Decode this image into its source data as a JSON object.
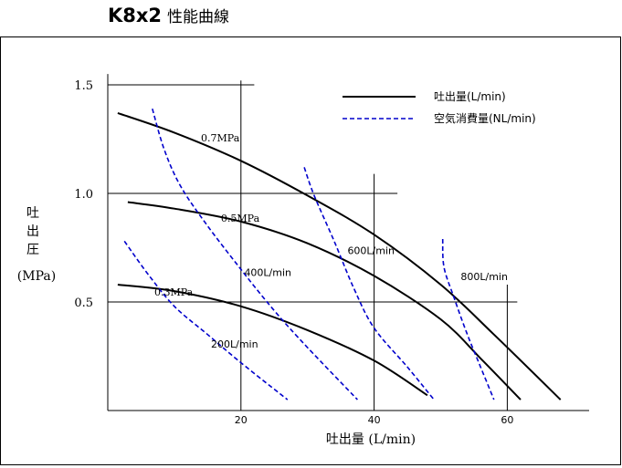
{
  "title": {
    "model": "K8x2",
    "subtitle": "性能曲線"
  },
  "chart_data": {
    "type": "line",
    "title": "K8x2 性能曲線",
    "xlabel": "吐出量 (L/min)",
    "ylabel_chars": [
      "吐",
      "出",
      "圧"
    ],
    "ylabel_unit": "(MPa)",
    "xlim": [
      0,
      72
    ],
    "ylim": [
      0,
      1.5
    ],
    "xticks": [
      20,
      40,
      60
    ],
    "yticks": [
      0.5,
      1.0,
      1.5
    ],
    "ytick_labels": [
      "0.5",
      "1.0",
      "1.5"
    ],
    "grid": "partial",
    "legend": {
      "placement": "top-right",
      "entries": [
        {
          "label": "吐出量(L/min)",
          "style": "solid",
          "color": "#000000"
        },
        {
          "label": "空気消費量(NL/min)",
          "style": "dashed",
          "color": "#0000cc"
        }
      ]
    },
    "pressure_curves": [
      {
        "label": "0.7MPa",
        "label_at": [
          14,
          1.24
        ],
        "points": [
          [
            1.5,
            1.37
          ],
          [
            10,
            1.28
          ],
          [
            20,
            1.15
          ],
          [
            30,
            0.99
          ],
          [
            40,
            0.81
          ],
          [
            50,
            0.58
          ],
          [
            58,
            0.35
          ],
          [
            68,
            0.05
          ]
        ]
      },
      {
        "label": "0.5MPa",
        "label_at": [
          17,
          0.87
        ],
        "points": [
          [
            3,
            0.96
          ],
          [
            10,
            0.93
          ],
          [
            20,
            0.87
          ],
          [
            30,
            0.77
          ],
          [
            40,
            0.62
          ],
          [
            50,
            0.42
          ],
          [
            56,
            0.24
          ],
          [
            62,
            0.05
          ]
        ]
      },
      {
        "label": "0.3MPa",
        "label_at": [
          7,
          0.53
        ],
        "points": [
          [
            1.5,
            0.58
          ],
          [
            10,
            0.55
          ],
          [
            20,
            0.48
          ],
          [
            30,
            0.37
          ],
          [
            40,
            0.23
          ],
          [
            48,
            0.07
          ]
        ]
      }
    ],
    "air_curves": [
      {
        "label": "200L/min",
        "label_at": [
          15.5,
          0.29
        ],
        "points": [
          [
            2.5,
            0.78
          ],
          [
            6,
            0.63
          ],
          [
            10,
            0.48
          ],
          [
            15,
            0.35
          ],
          [
            20,
            0.22
          ],
          [
            27,
            0.05
          ]
        ]
      },
      {
        "label": "400L/min",
        "label_at": [
          20.5,
          0.62
        ],
        "points": [
          [
            6.7,
            1.39
          ],
          [
            8.5,
            1.2
          ],
          [
            11,
            1.03
          ],
          [
            15,
            0.85
          ],
          [
            20,
            0.65
          ],
          [
            25,
            0.46
          ],
          [
            30,
            0.29
          ],
          [
            37.5,
            0.05
          ]
        ]
      },
      {
        "label": "600L/min",
        "label_at": [
          36,
          0.72
        ],
        "points": [
          [
            29.5,
            1.12
          ],
          [
            31,
            0.99
          ],
          [
            34,
            0.78
          ],
          [
            37,
            0.56
          ],
          [
            40,
            0.38
          ],
          [
            45,
            0.2
          ],
          [
            49,
            0.05
          ]
        ]
      },
      {
        "label": "800L/min",
        "label_at": [
          53,
          0.6
        ],
        "points": [
          [
            50.3,
            0.79
          ],
          [
            50.5,
            0.66
          ],
          [
            52,
            0.52
          ],
          [
            54,
            0.35
          ],
          [
            56,
            0.2
          ],
          [
            58,
            0.05
          ]
        ]
      }
    ]
  }
}
